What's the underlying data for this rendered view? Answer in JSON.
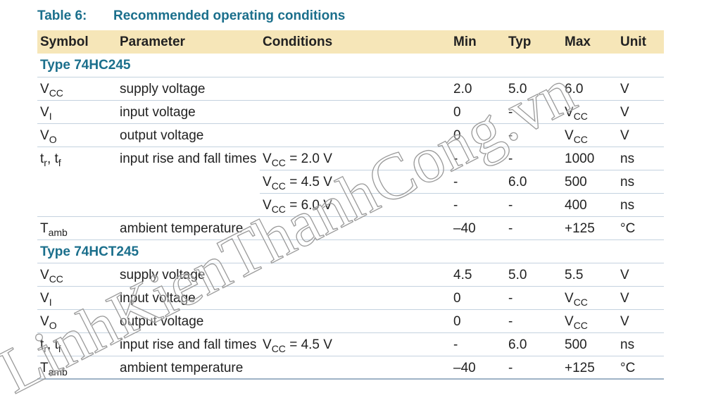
{
  "title": {
    "number": "Table 6:",
    "text": "Recommended operating conditions"
  },
  "columns": [
    "Symbol",
    "Parameter",
    "Conditions",
    "Min",
    "Typ",
    "Max",
    "Unit"
  ],
  "sections": [
    {
      "title": "Type 74HC245",
      "rows": [
        {
          "symbol": [
            {
              "text": "V",
              "sub": "CC"
            }
          ],
          "parameter": "supply voltage",
          "lines": [
            {
              "conditions": [],
              "min": "2.0",
              "typ": "5.0",
              "max": "6.0",
              "unit": "V"
            }
          ]
        },
        {
          "symbol": [
            {
              "text": "V",
              "sub": "I"
            }
          ],
          "parameter": "input voltage",
          "lines": [
            {
              "conditions": [],
              "min": "0",
              "typ": "-",
              "max": [
                {
                  "text": "V",
                  "sub": "CC"
                }
              ],
              "unit": "V"
            }
          ]
        },
        {
          "symbol": [
            {
              "text": "V",
              "sub": "O"
            }
          ],
          "parameter": "output voltage",
          "lines": [
            {
              "conditions": [],
              "min": "0",
              "typ": "-",
              "max": [
                {
                  "text": "V",
                  "sub": "CC"
                }
              ],
              "unit": "V"
            }
          ]
        },
        {
          "symbol": [
            {
              "text": "t",
              "sub": "r"
            },
            {
              "text": ", t",
              "sub": "f"
            }
          ],
          "parameter": "input rise and fall times",
          "lines": [
            {
              "conditions": [
                {
                  "text": "V",
                  "sub": "CC"
                },
                {
                  "text": " = 2.0 V"
                }
              ],
              "min": "-",
              "typ": "-",
              "max": "1000",
              "unit": "ns"
            },
            {
              "conditions": [
                {
                  "text": "V",
                  "sub": "CC"
                },
                {
                  "text": " = 4.5 V"
                }
              ],
              "min": "-",
              "typ": "6.0",
              "max": "500",
              "unit": "ns"
            },
            {
              "conditions": [
                {
                  "text": "V",
                  "sub": "CC"
                },
                {
                  "text": " = 6.0 V"
                }
              ],
              "min": "-",
              "typ": "-",
              "max": "400",
              "unit": "ns"
            }
          ]
        },
        {
          "symbol": [
            {
              "text": "T",
              "sub": "amb"
            }
          ],
          "parameter": "ambient temperature",
          "lines": [
            {
              "conditions": [],
              "min": "–40",
              "typ": "-",
              "max": "+125",
              "unit": "°C"
            }
          ]
        }
      ]
    },
    {
      "title": "Type 74HCT245",
      "rows": [
        {
          "symbol": [
            {
              "text": "V",
              "sub": "CC"
            }
          ],
          "parameter": "supply voltage",
          "lines": [
            {
              "conditions": [],
              "min": "4.5",
              "typ": "5.0",
              "max": "5.5",
              "unit": "V"
            }
          ]
        },
        {
          "symbol": [
            {
              "text": "V",
              "sub": "I"
            }
          ],
          "parameter": "input voltage",
          "lines": [
            {
              "conditions": [],
              "min": "0",
              "typ": "-",
              "max": [
                {
                  "text": "V",
                  "sub": "CC"
                }
              ],
              "unit": "V"
            }
          ]
        },
        {
          "symbol": [
            {
              "text": "V",
              "sub": "O"
            }
          ],
          "parameter": "output voltage",
          "lines": [
            {
              "conditions": [],
              "min": "0",
              "typ": "-",
              "max": [
                {
                  "text": "V",
                  "sub": "CC"
                }
              ],
              "unit": "V"
            }
          ]
        },
        {
          "symbol": [
            {
              "text": "t",
              "sub": "r"
            },
            {
              "text": ", t",
              "sub": "f"
            }
          ],
          "parameter": "input rise and fall times",
          "lines": [
            {
              "conditions": [
                {
                  "text": "V",
                  "sub": "CC"
                },
                {
                  "text": " = 4.5 V"
                }
              ],
              "min": "-",
              "typ": "6.0",
              "max": "500",
              "unit": "ns"
            }
          ]
        },
        {
          "symbol": [
            {
              "text": "T",
              "sub": "amb"
            }
          ],
          "parameter": "ambient temperature",
          "lines": [
            {
              "conditions": [],
              "min": "–40",
              "typ": "-",
              "max": "+125",
              "unit": "°C"
            }
          ]
        }
      ]
    }
  ],
  "watermark": "LinhKienThanhCong.vn"
}
